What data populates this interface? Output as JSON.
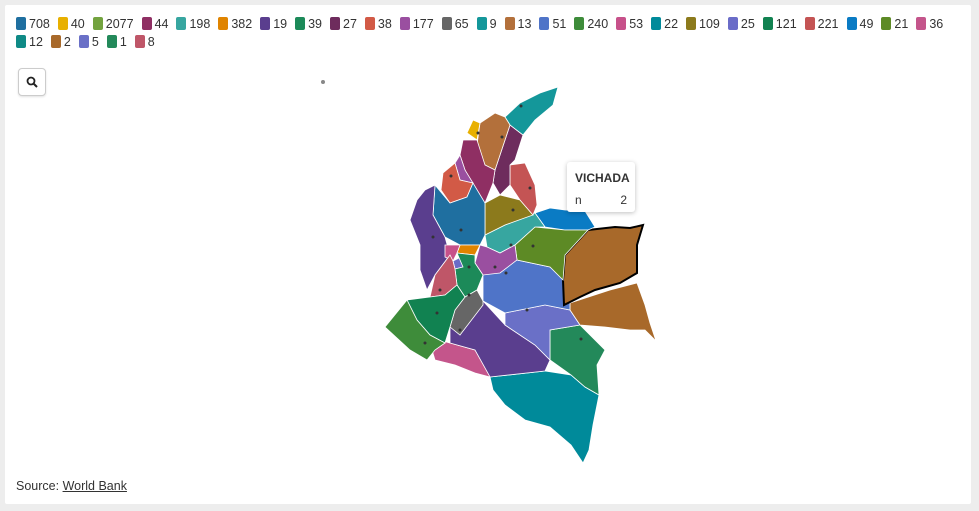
{
  "legend": [
    {
      "label": "708",
      "color": "#1f6fa0"
    },
    {
      "label": "40",
      "color": "#e8b000"
    },
    {
      "label": "2077",
      "color": "#73a33f"
    },
    {
      "label": "44",
      "color": "#8f2f63"
    },
    {
      "label": "198",
      "color": "#37a6a0"
    },
    {
      "label": "382",
      "color": "#e08400"
    },
    {
      "label": "19",
      "color": "#5a3e8e"
    },
    {
      "label": "39",
      "color": "#1c8a59"
    },
    {
      "label": "27",
      "color": "#6e2c5d"
    },
    {
      "label": "38",
      "color": "#d25a46"
    },
    {
      "label": "177",
      "color": "#9a4fa0"
    },
    {
      "label": "65",
      "color": "#666666"
    },
    {
      "label": "9",
      "color": "#14979a"
    },
    {
      "label": "13",
      "color": "#b3703b"
    },
    {
      "label": "51",
      "color": "#4f74c8"
    },
    {
      "label": "240",
      "color": "#3e8c3a"
    },
    {
      "label": "53",
      "color": "#c7518a"
    },
    {
      "label": "22",
      "color": "#008a9a"
    },
    {
      "label": "109",
      "color": "#8c7a1c"
    },
    {
      "label": "25",
      "color": "#6a6cc8"
    },
    {
      "label": "121",
      "color": "#118251"
    },
    {
      "label": "221",
      "color": "#c45454"
    },
    {
      "label": "49",
      "color": "#0a7bc4"
    },
    {
      "label": "21",
      "color": "#5d8a25"
    },
    {
      "label": "36",
      "color": "#c4558b"
    },
    {
      "label": "12",
      "color": "#0f8a86"
    },
    {
      "label": "2",
      "color": "#a8692a"
    },
    {
      "label": "5",
      "color": "#6a70c7"
    },
    {
      "label": "1",
      "color": "#23895a"
    },
    {
      "label": "8",
      "color": "#bf5668"
    }
  ],
  "tooltip": {
    "title": "VICHADA",
    "key": "n",
    "value": "2"
  },
  "source": {
    "prefix": "Source: ",
    "link_text": "World Bank"
  },
  "controls": {
    "search_icon": "magnifier-icon"
  }
}
